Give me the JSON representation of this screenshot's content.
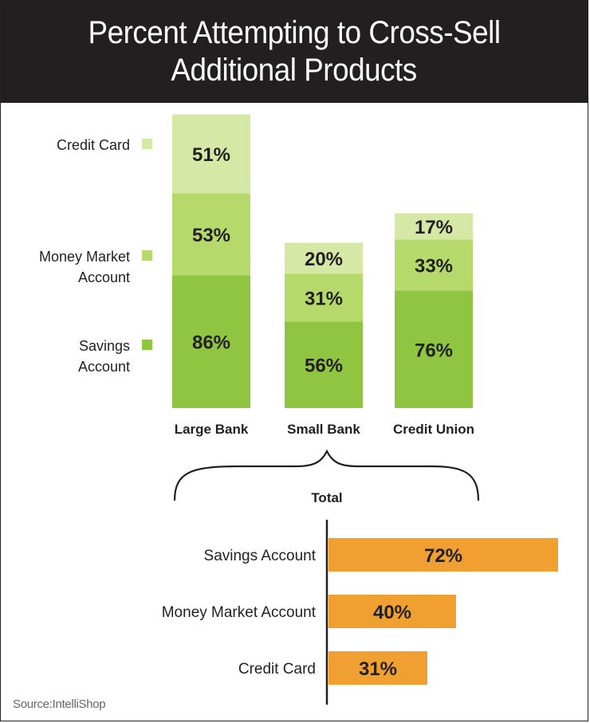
{
  "title": [
    "Percent Attempting to Cross-Sell",
    "Additional Products"
  ],
  "source": "Source:IntelliShop",
  "colors": {
    "title_bg": "#231f20",
    "credit_card": "#d6e8a6",
    "money_market": "#b5d96a",
    "savings": "#8fc541",
    "total_bar": "#f0a030",
    "text": "#231f20"
  },
  "chart_data": [
    {
      "type": "bar",
      "stacked": true,
      "categories": [
        "Large Bank",
        "Small Bank",
        "Credit Union"
      ],
      "series": [
        {
          "name": "Savings Account",
          "values": [
            86,
            56,
            76
          ],
          "labels": [
            "86%",
            "56%",
            "76%"
          ]
        },
        {
          "name": "Money Market Account",
          "values": [
            53,
            31,
            33
          ],
          "labels": [
            "53%",
            "31%",
            "33%"
          ]
        },
        {
          "name": "Credit Card",
          "values": [
            51,
            20,
            17
          ],
          "labels": [
            "51%",
            "20%",
            "17%"
          ]
        }
      ],
      "legend": {
        "placement": "left",
        "entries": [
          {
            "key": "credit_card",
            "lines": [
              "Credit Card"
            ]
          },
          {
            "key": "money_market",
            "lines": [
              "Money Market",
              "Account"
            ]
          },
          {
            "key": "savings",
            "lines": [
              "Savings",
              "Account"
            ]
          }
        ]
      },
      "grid": false
    },
    {
      "type": "bar",
      "orientation": "horizontal",
      "title": "Total",
      "categories": [
        "Savings Account",
        "Money Market Account",
        "Credit Card"
      ],
      "values": [
        72,
        40,
        31
      ],
      "labels": [
        "72%",
        "40%",
        "31%"
      ],
      "grid": false
    }
  ]
}
